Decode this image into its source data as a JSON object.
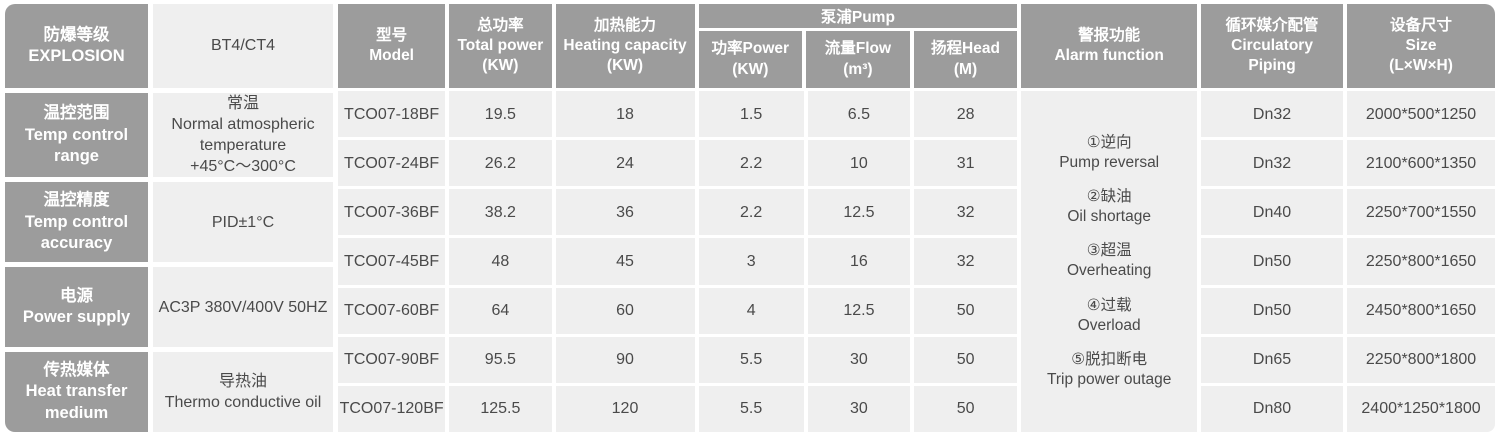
{
  "colors": {
    "header_bg": "#9c9c9c",
    "cell_bg": "#efefef",
    "header_text": "#ffffff",
    "cell_text": "#4a4a4a"
  },
  "spec_panel": {
    "rows": [
      {
        "label": [
          "防爆等级",
          "EXPLOSION"
        ],
        "value": [
          "BT4/CT4"
        ]
      },
      {
        "label": [
          "温控范围",
          "Temp control",
          "range"
        ],
        "value": [
          "常温",
          "Normal atmospheric",
          "temperature",
          "+45°C～300°C"
        ]
      },
      {
        "label": [
          "温控精度",
          "Temp control",
          "accuracy"
        ],
        "value": [
          "PID±1°C"
        ]
      },
      {
        "label": [
          "电源",
          "Power supply"
        ],
        "value": [
          "AC3P 380V/400V 50HZ"
        ]
      },
      {
        "label": [
          "传热媒体",
          "Heat transfer",
          "medium"
        ],
        "value": [
          "导热油",
          "Thermo conductive oil"
        ]
      }
    ]
  },
  "table": {
    "headers": {
      "model": [
        "型号",
        "Model"
      ],
      "total_power": [
        "总功率",
        "Total power",
        "(KW)"
      ],
      "heating_capacity": [
        "加热能力",
        "Heating capacity",
        "(KW)"
      ],
      "pump_group": "泵浦Pump",
      "pump_power": [
        "功率Power",
        "(KW)"
      ],
      "pump_flow": [
        "流量Flow",
        "(m³)"
      ],
      "pump_head": [
        "扬程Head",
        "(M)"
      ],
      "alarm": [
        "警报功能",
        "Alarm function"
      ],
      "piping": [
        "循环媒介配管",
        "Circulatory",
        "Piping"
      ],
      "size": [
        "设备尺寸",
        "Size",
        "(L×W×H)"
      ]
    },
    "rows": [
      {
        "model": "TCO07-18BF",
        "total_power": "19.5",
        "heating": "18",
        "pump_power": "1.5",
        "flow": "6.5",
        "head": "28",
        "piping": "Dn32",
        "size": "2000*500*1250"
      },
      {
        "model": "TCO07-24BF",
        "total_power": "26.2",
        "heating": "24",
        "pump_power": "2.2",
        "flow": "10",
        "head": "31",
        "piping": "Dn32",
        "size": "2100*600*1350"
      },
      {
        "model": "TCO07-36BF",
        "total_power": "38.2",
        "heating": "36",
        "pump_power": "2.2",
        "flow": "12.5",
        "head": "32",
        "piping": "Dn40",
        "size": "2250*700*1550"
      },
      {
        "model": "TCO07-45BF",
        "total_power": "48",
        "heating": "45",
        "pump_power": "3",
        "flow": "16",
        "head": "32",
        "piping": "Dn50",
        "size": "2250*800*1650"
      },
      {
        "model": "TCO07-60BF",
        "total_power": "64",
        "heating": "60",
        "pump_power": "4",
        "flow": "12.5",
        "head": "50",
        "piping": "Dn50",
        "size": "2450*800*1650"
      },
      {
        "model": "TCO07-90BF",
        "total_power": "95.5",
        "heating": "90",
        "pump_power": "5.5",
        "flow": "30",
        "head": "50",
        "piping": "Dn65",
        "size": "2250*800*1800"
      },
      {
        "model": "TCO07-120BF",
        "total_power": "125.5",
        "heating": "120",
        "pump_power": "5.5",
        "flow": "30",
        "head": "50",
        "piping": "Dn80",
        "size": "2400*1250*1800"
      }
    ],
    "alarm_items": [
      {
        "zh": "①逆向",
        "en": "Pump reversal"
      },
      {
        "zh": "②缺油",
        "en": "Oil shortage"
      },
      {
        "zh": "③超温",
        "en": "Overheating"
      },
      {
        "zh": "④过载",
        "en": "Overload"
      },
      {
        "zh": "⑤脱扣断电",
        "en": "Trip power outage"
      }
    ]
  }
}
